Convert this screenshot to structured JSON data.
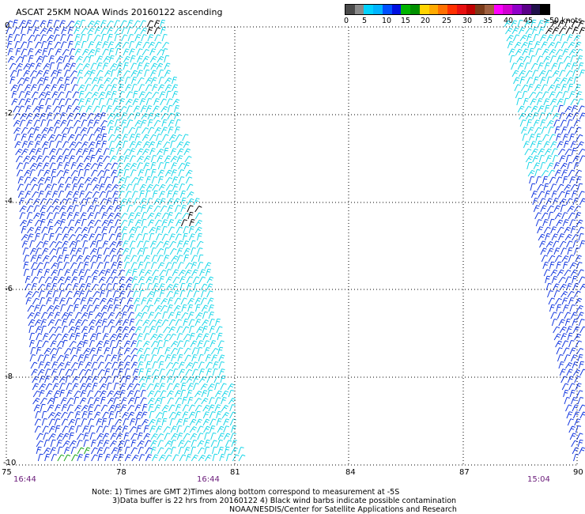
{
  "title": "ASCAT 25KM NOAA Winds 20160122 ascending",
  "legend": {
    "swatches": [
      "#4a4a4a",
      "#8a8a8a",
      "#00d2ff",
      "#00b4ff",
      "#0050ff",
      "#0010e0",
      "#00b400",
      "#009000",
      "#ffd400",
      "#ffaa00",
      "#ff7000",
      "#ff3000",
      "#e81010",
      "#c00000",
      "#7a3a18",
      "#a06040",
      "#ff00ff",
      "#d000d0",
      "#9000c8",
      "#5a0088",
      "#20104a",
      "#000000"
    ],
    "labels": [
      "0",
      "5",
      "10",
      "15",
      "20",
      "25",
      "30",
      "35",
      "40",
      "45",
      ">50 knots"
    ]
  },
  "axes": {
    "y_ticks": [
      "0",
      "-2",
      "-4",
      "-6",
      "-8",
      "-10"
    ],
    "x_ticks": [
      "75",
      "78",
      "81",
      "84",
      "87",
      "90"
    ]
  },
  "times": [
    "16:44",
    "16:44",
    "15:04"
  ],
  "notes": [
    "Note: 1) Times are GMT 2)Times along bottom correspond to measurement at -5S",
    "3)Data buffer is 22 hrs from 20160122 4) Black wind barbs indicate possible contamination",
    "NOAA/NESDIS/Center for Satellite Applications and Research"
  ],
  "colors": {
    "cyan_barb": "#19d6e8",
    "blue_barb": "#1438e0",
    "green_barb": "#1aa51a",
    "contaminated_barb": "#000000",
    "time_label": "#6a1b7a"
  }
}
